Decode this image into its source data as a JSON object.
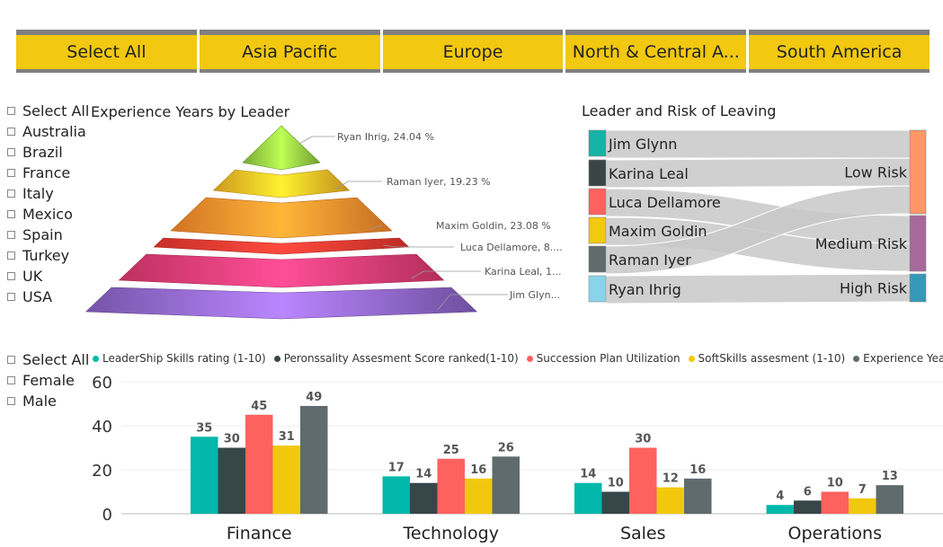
{
  "region_tabs": [
    "Select All",
    "Asia Pacific",
    "Europe",
    "North & Central A...",
    "South America"
  ],
  "colors": {
    "tab_bg": "#f2c811",
    "tab_border": "#7f7f7f"
  },
  "country_slicer": [
    "Select All",
    "Australia",
    "Brazil",
    "France",
    "Italy",
    "Mexico",
    "Spain",
    "Turkey",
    "UK",
    "USA"
  ],
  "gender_slicer": [
    "Select All",
    "Female",
    "Male"
  ],
  "chart_data": [
    {
      "type": "pyramid",
      "title": "Experience Years by Leader",
      "layers": [
        {
          "label": "Ryan Ihrig, 24.04 %",
          "leader": "Ryan Ihrig",
          "color": "#8cc63f"
        },
        {
          "label": "Raman Iyer, 19.23 %",
          "leader": "Raman Iyer",
          "color": "#f0b323"
        },
        {
          "label": "Maxim Goldin, 23.08 %",
          "leader": "Maxim Goldin",
          "color": "#f7872a"
        },
        {
          "label": "Luca Dellamore, 8....",
          "leader": "Luca Dellamore",
          "color": "#e8372e"
        },
        {
          "label": "Karina Leal, 1...",
          "leader": "Karina Leal",
          "color": "#de3a70"
        },
        {
          "label": "Jim Glyn...",
          "leader": "Jim Glynn",
          "color": "#8a63c4"
        }
      ]
    },
    {
      "type": "sankey",
      "title": "Leader and Risk of Leaving",
      "sources": [
        {
          "name": "Jim Glynn",
          "color": "#16b3a6"
        },
        {
          "name": "Karina Leal",
          "color": "#3a4446"
        },
        {
          "name": "Luca Dellamore",
          "color": "#fd625e"
        },
        {
          "name": "Maxim Goldin",
          "color": "#f2c811"
        },
        {
          "name": "Raman Iyer",
          "color": "#5f6b6d"
        },
        {
          "name": "Ryan Ihrig",
          "color": "#8ad4eb"
        }
      ],
      "targets": [
        {
          "name": "Low Risk",
          "color": "#fe9666"
        },
        {
          "name": "Medium Risk",
          "color": "#a66999"
        },
        {
          "name": "High Risk",
          "color": "#3599b8"
        }
      ],
      "flows": [
        {
          "from": "Jim Glynn",
          "to": "Low Risk"
        },
        {
          "from": "Karina Leal",
          "to": "Low Risk"
        },
        {
          "from": "Luca Dellamore",
          "to": "Medium Risk"
        },
        {
          "from": "Maxim Goldin",
          "to": "Medium Risk"
        },
        {
          "from": "Raman Iyer",
          "to": "Low Risk"
        },
        {
          "from": "Ryan Ihrig",
          "to": "High Risk"
        }
      ]
    },
    {
      "type": "bar",
      "categories": [
        "Finance",
        "Technology",
        "Sales",
        "Operations"
      ],
      "series": [
        {
          "name": "LeaderShip Skills rating (1-10)",
          "color": "#01b8aa",
          "values": [
            35,
            17,
            14,
            4
          ]
        },
        {
          "name": "Peronssality Assesment Score ranked(1-10)",
          "color": "#374649",
          "values": [
            30,
            14,
            10,
            6
          ]
        },
        {
          "name": "Succession Plan Utilization",
          "color": "#fd625e",
          "values": [
            45,
            25,
            30,
            10
          ]
        },
        {
          "name": "SoftSkills assesment (1-10)",
          "color": "#f2c80f",
          "values": [
            31,
            16,
            12,
            7
          ]
        },
        {
          "name": "Experience Years",
          "color": "#5f6b6d",
          "values": [
            49,
            26,
            16,
            13
          ]
        }
      ],
      "yticks": [
        0,
        20,
        40,
        60
      ],
      "ylim": [
        0,
        60
      ],
      "grid": true,
      "legend_position": "top"
    }
  ]
}
